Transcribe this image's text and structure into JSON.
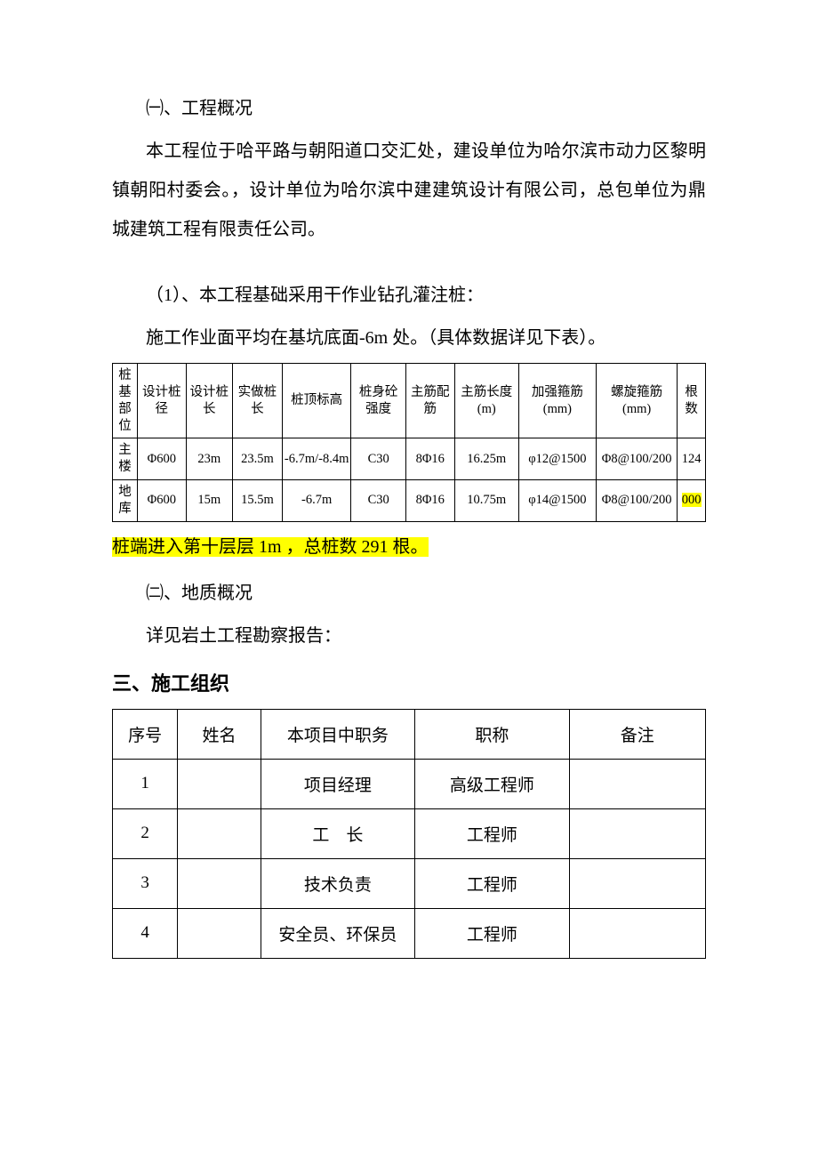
{
  "s1": {
    "h": "㈠、工程概况",
    "p": "本工程位于哈平路与朝阳道口交汇处，建设单位为哈尔滨市动力区黎明镇朝阳村委会。，设计单位为哈尔滨中建建筑设计有限公司，总包单位为鼎城建筑工程有限责任公司。"
  },
  "sub": {
    "h": "（1）、本工程基础采用干作业钻孔灌注桩：",
    "p": "施工作业面平均在基坑底面-6m 处。（具体数据详见下表）。"
  },
  "t1": {
    "head": [
      "桩基部位",
      "设计桩径",
      "设计桩长",
      "实做桩长",
      "桩顶标高",
      "桩身砼强度",
      "主筋配筋",
      "主筋长度(m)",
      "加强箍筋(mm)",
      "螺旋箍筋(mm)",
      "根数"
    ],
    "row1": [
      "主楼",
      "Φ600",
      "23m",
      "23.5m",
      "-6.7m/-8.4m",
      "C30",
      "8Φ16",
      "16.25m",
      "φ12@1500",
      "Φ8@100/200",
      "124"
    ],
    "row2": [
      "地库",
      "Φ600",
      "15m",
      "15.5m",
      "-6.7m",
      "C30",
      "8Φ16",
      "10.75m",
      "φ14@1500",
      "Φ8@100/200",
      "000"
    ]
  },
  "note": "桩端进入第十层层 1m ，总桩数 291 根。",
  "s2": {
    "h": "㈡、地质概况",
    "p": "详见岩土工程勘察报告："
  },
  "s3": "三、施工组织",
  "t2": {
    "head": [
      "序号",
      "姓名",
      "本项目中职务",
      "职称",
      "备注"
    ],
    "rows": [
      [
        "1",
        "",
        "项目经理",
        "高级工程师",
        ""
      ],
      [
        "2",
        "",
        "工　长",
        "工程师",
        ""
      ],
      [
        "3",
        "",
        "技术负责",
        "工程师",
        ""
      ],
      [
        "4",
        "",
        "安全员、环保员",
        "工程师",
        ""
      ]
    ]
  },
  "colors": {
    "highlight": "#ffff00",
    "border": "#000000",
    "bg": "#ffffff"
  }
}
